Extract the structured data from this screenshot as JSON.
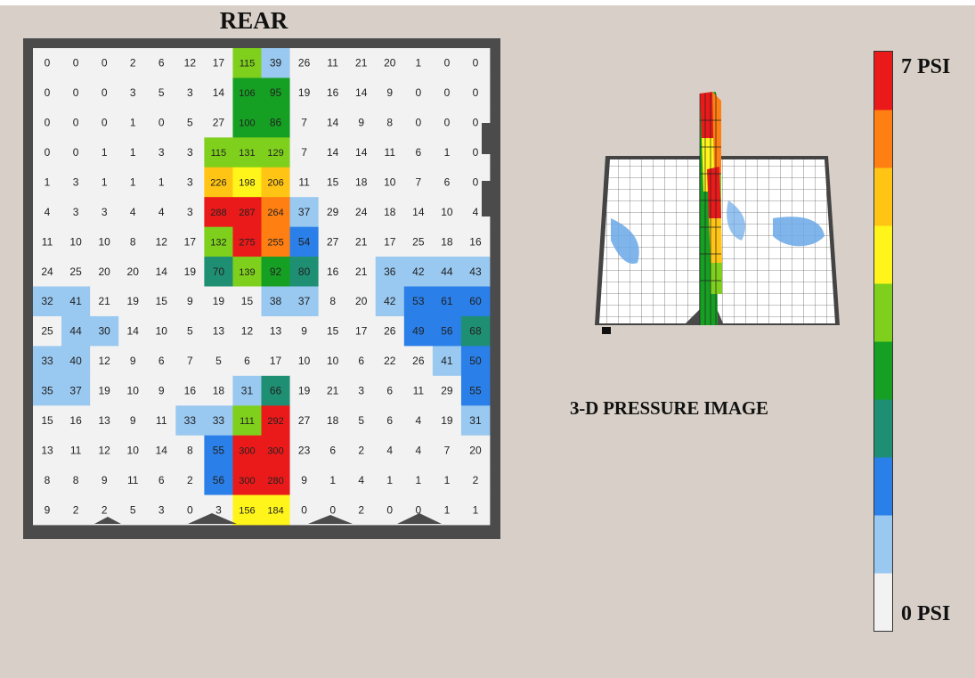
{
  "header": {
    "title": "REAR"
  },
  "view_3d": {
    "caption": "3-D PRESSURE IMAGE"
  },
  "legend": {
    "max_label": "7 PSI",
    "min_label": "0 PSI",
    "bands_bottom_to_top": [
      "#f2f2f2",
      "#99c8f0",
      "#2a7fe8",
      "#1f8f73",
      "#16a023",
      "#7fd01c",
      "#fff51a",
      "#ffc414",
      "#ff7f12",
      "#ea1a1a"
    ]
  },
  "chart_data": {
    "type": "heatmap",
    "title": "REAR",
    "rows": 16,
    "cols": 16,
    "values": [
      [
        0,
        0,
        0,
        2,
        6,
        12,
        17,
        115,
        39,
        26,
        11,
        21,
        20,
        1,
        0,
        0
      ],
      [
        0,
        0,
        0,
        3,
        5,
        3,
        14,
        106,
        95,
        19,
        16,
        14,
        9,
        0,
        0,
        0
      ],
      [
        0,
        0,
        0,
        1,
        0,
        5,
        27,
        100,
        86,
        7,
        14,
        9,
        8,
        0,
        0,
        0
      ],
      [
        0,
        0,
        1,
        1,
        3,
        3,
        115,
        131,
        129,
        7,
        14,
        14,
        11,
        6,
        1,
        0
      ],
      [
        1,
        3,
        1,
        1,
        1,
        3,
        226,
        198,
        206,
        11,
        15,
        18,
        10,
        7,
        6,
        0
      ],
      [
        4,
        3,
        3,
        4,
        4,
        3,
        288,
        287,
        264,
        37,
        29,
        24,
        18,
        14,
        10,
        4
      ],
      [
        11,
        10,
        10,
        8,
        12,
        17,
        132,
        275,
        255,
        54,
        27,
        21,
        17,
        25,
        18,
        16
      ],
      [
        24,
        25,
        20,
        20,
        14,
        19,
        70,
        139,
        92,
        80,
        16,
        21,
        36,
        42,
        44,
        43
      ],
      [
        32,
        41,
        21,
        19,
        15,
        9,
        19,
        15,
        38,
        37,
        8,
        20,
        42,
        53,
        61,
        60
      ],
      [
        25,
        44,
        30,
        14,
        10,
        5,
        13,
        12,
        13,
        9,
        15,
        17,
        26,
        49,
        56,
        68
      ],
      [
        33,
        40,
        12,
        9,
        6,
        7,
        5,
        6,
        17,
        10,
        10,
        6,
        22,
        26,
        41,
        50
      ],
      [
        35,
        37,
        19,
        10,
        9,
        16,
        18,
        31,
        66,
        19,
        21,
        3,
        6,
        11,
        29,
        55
      ],
      [
        15,
        16,
        13,
        9,
        11,
        33,
        33,
        111,
        292,
        27,
        18,
        5,
        6,
        4,
        19,
        31
      ],
      [
        13,
        11,
        12,
        10,
        14,
        8,
        55,
        300,
        300,
        23,
        6,
        2,
        4,
        4,
        7,
        20
      ],
      [
        8,
        8,
        9,
        11,
        6,
        2,
        56,
        300,
        280,
        9,
        1,
        4,
        1,
        1,
        1,
        2
      ],
      [
        9,
        2,
        2,
        5,
        3,
        0,
        3,
        156,
        184,
        0,
        0,
        2,
        0,
        0,
        1,
        1
      ]
    ],
    "color_scale": {
      "min_label": "0 PSI",
      "max_label": "7 PSI"
    },
    "legend_placement": "right"
  }
}
